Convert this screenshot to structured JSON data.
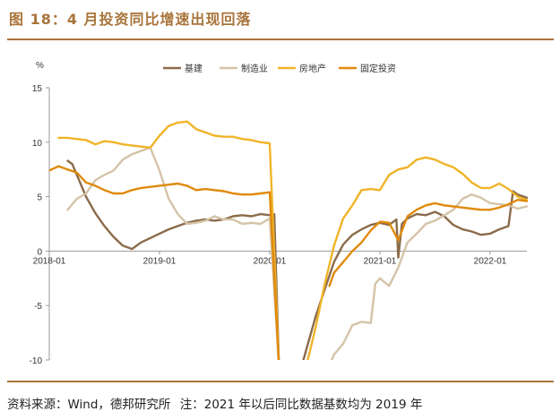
{
  "figure": {
    "title": "图 18：4 月投资同比增速出现回落",
    "source": "资料来源：Wind，德邦研究所",
    "note": "注：2021 年以后同比数据基数均为 2019 年"
  },
  "colors": {
    "accent": "#a8743a",
    "infrastructure": "#8b6b4a",
    "manufacturing": "#d4c4a8",
    "real_estate": "#f0b429",
    "fixed_investment": "#e08a0c",
    "axis": "#999999"
  },
  "chart_data": {
    "type": "line",
    "title": "",
    "ylabel": "%",
    "xlabel": "",
    "ylim": [
      -10,
      15
    ],
    "yticks": [
      -10,
      -5,
      0,
      5,
      10,
      15
    ],
    "xlim": [
      0,
      52
    ],
    "xticks": [
      {
        "x": 0,
        "label": "2018-01"
      },
      {
        "x": 12,
        "label": "2019-01"
      },
      {
        "x": 24,
        "label": "2020-01"
      },
      {
        "x": 36,
        "label": "2021-01"
      },
      {
        "x": 48,
        "label": "2022-01"
      }
    ],
    "legend_position": "top",
    "series": [
      {
        "name": "基建",
        "color_key": "infrastructure",
        "segments": [
          [
            [
              2,
              8.3
            ],
            [
              2.5,
              8.0
            ],
            [
              3,
              7.0
            ],
            [
              4,
              5.0
            ],
            [
              5,
              3.5
            ],
            [
              6,
              2.3
            ],
            [
              7,
              1.3
            ],
            [
              8,
              0.5
            ],
            [
              9,
              0.2
            ],
            [
              10,
              0.8
            ],
            [
              11,
              1.2
            ],
            [
              12,
              1.6
            ],
            [
              13,
              2.0
            ],
            [
              14,
              2.3
            ],
            [
              15,
              2.6
            ],
            [
              16,
              2.8
            ],
            [
              17,
              2.9
            ],
            [
              18,
              2.8
            ],
            [
              19,
              2.9
            ],
            [
              20,
              3.2
            ],
            [
              21,
              3.3
            ],
            [
              22,
              3.2
            ],
            [
              23,
              3.4
            ],
            [
              24,
              3.3
            ],
            [
              24.5,
              3.4
            ],
            [
              25,
              -10.5
            ]
          ],
          [
            [
              27.5,
              -10.5
            ],
            [
              28,
              -9.0
            ],
            [
              29,
              -6.0
            ],
            [
              30,
              -3.5
            ],
            [
              31,
              -1.0
            ],
            [
              32,
              0.6
            ],
            [
              33,
              1.5
            ],
            [
              34,
              2.0
            ],
            [
              35,
              2.4
            ],
            [
              36,
              2.6
            ],
            [
              37,
              2.4
            ],
            [
              37.8,
              2.9
            ],
            [
              38,
              -0.6
            ],
            [
              38.4,
              2.5
            ],
            [
              39,
              3.0
            ],
            [
              40,
              3.4
            ],
            [
              41,
              3.3
            ],
            [
              42,
              3.6
            ],
            [
              43,
              3.2
            ],
            [
              44,
              2.4
            ],
            [
              45,
              2.0
            ],
            [
              46,
              1.8
            ],
            [
              47,
              1.5
            ],
            [
              48,
              1.6
            ],
            [
              49,
              2.0
            ],
            [
              50,
              2.3
            ],
            [
              50.5,
              5.5
            ],
            [
              51,
              5.2
            ],
            [
              52,
              4.9
            ]
          ]
        ]
      },
      {
        "name": "制造业",
        "color_key": "manufacturing",
        "segments": [
          [
            [
              2,
              3.8
            ],
            [
              3,
              4.8
            ],
            [
              4,
              5.3
            ],
            [
              5,
              6.5
            ],
            [
              6,
              7.0
            ],
            [
              7,
              7.4
            ],
            [
              8,
              8.4
            ],
            [
              9,
              8.9
            ],
            [
              10,
              9.2
            ],
            [
              11,
              9.5
            ],
            [
              12,
              7.4
            ],
            [
              13,
              4.8
            ],
            [
              14,
              3.4
            ],
            [
              15,
              2.5
            ],
            [
              16,
              2.6
            ],
            [
              17,
              2.8
            ],
            [
              18,
              3.2
            ],
            [
              19,
              2.9
            ],
            [
              20,
              2.9
            ],
            [
              21,
              2.5
            ],
            [
              22,
              2.6
            ],
            [
              23,
              2.5
            ],
            [
              24,
              3.0
            ],
            [
              25,
              -10.5
            ]
          ],
          [
            [
              30.5,
              -10.5
            ],
            [
              31,
              -9.5
            ],
            [
              32,
              -8.5
            ],
            [
              33,
              -6.8
            ],
            [
              34,
              -6.5
            ],
            [
              35,
              -6.6
            ],
            [
              35.5,
              -3.0
            ],
            [
              36,
              -2.5
            ],
            [
              37,
              -3.2
            ],
            [
              38,
              -1.5
            ],
            [
              39,
              0.8
            ],
            [
              40,
              1.6
            ],
            [
              41,
              2.5
            ],
            [
              42,
              2.8
            ],
            [
              43,
              3.3
            ],
            [
              44,
              3.8
            ],
            [
              45,
              4.8
            ],
            [
              46,
              5.2
            ],
            [
              47,
              4.9
            ],
            [
              48,
              4.4
            ],
            [
              49,
              4.3
            ],
            [
              50,
              4.2
            ],
            [
              51,
              3.9
            ],
            [
              52,
              4.1
            ]
          ]
        ]
      },
      {
        "name": "房地产",
        "color_key": "real_estate",
        "segments": [
          [
            [
              1,
              10.4
            ],
            [
              2,
              10.4
            ],
            [
              3,
              10.3
            ],
            [
              4,
              10.2
            ],
            [
              5,
              9.8
            ],
            [
              6,
              10.1
            ],
            [
              7,
              10.0
            ],
            [
              8,
              9.8
            ],
            [
              9,
              9.7
            ],
            [
              10,
              9.6
            ],
            [
              11,
              9.5
            ],
            [
              12,
              10.6
            ],
            [
              13,
              11.5
            ],
            [
              14,
              11.8
            ],
            [
              15,
              11.9
            ],
            [
              16,
              11.2
            ],
            [
              17,
              10.9
            ],
            [
              18,
              10.6
            ],
            [
              19,
              10.5
            ],
            [
              20,
              10.5
            ],
            [
              21,
              10.3
            ],
            [
              22,
              10.2
            ],
            [
              23,
              10.0
            ],
            [
              24,
              9.9
            ],
            [
              25,
              -10.5
            ]
          ],
          [
            [
              28,
              -10.5
            ],
            [
              29,
              -7.0
            ],
            [
              30,
              -3.0
            ],
            [
              31,
              0.5
            ],
            [
              32,
              3.0
            ],
            [
              33,
              4.2
            ],
            [
              34,
              5.6
            ],
            [
              35,
              5.7
            ],
            [
              36,
              5.6
            ],
            [
              37,
              7.0
            ],
            [
              38,
              7.5
            ],
            [
              39,
              7.7
            ],
            [
              40,
              8.4
            ],
            [
              41,
              8.6
            ],
            [
              42,
              8.4
            ],
            [
              43,
              8.0
            ],
            [
              44,
              7.7
            ],
            [
              45,
              7.1
            ],
            [
              46,
              6.3
            ],
            [
              47,
              5.8
            ],
            [
              48,
              5.8
            ],
            [
              49,
              6.2
            ],
            [
              50,
              5.7
            ],
            [
              51,
              5.0
            ],
            [
              52,
              4.7
            ]
          ]
        ]
      },
      {
        "name": "固定投资",
        "color_key": "fixed_investment",
        "segments": [
          [
            [
              0,
              7.4
            ],
            [
              1,
              7.8
            ],
            [
              2,
              7.5
            ],
            [
              3,
              7.2
            ],
            [
              4,
              6.3
            ],
            [
              5,
              6.0
            ],
            [
              6,
              5.6
            ],
            [
              7,
              5.3
            ],
            [
              8,
              5.3
            ],
            [
              9,
              5.6
            ],
            [
              10,
              5.8
            ],
            [
              11,
              5.9
            ],
            [
              12,
              6.0
            ],
            [
              13,
              6.1
            ],
            [
              14,
              6.2
            ],
            [
              15,
              6.0
            ],
            [
              16,
              5.6
            ],
            [
              17,
              5.7
            ],
            [
              18,
              5.6
            ],
            [
              19,
              5.5
            ],
            [
              20,
              5.3
            ],
            [
              21,
              5.2
            ],
            [
              22,
              5.2
            ],
            [
              23,
              5.3
            ],
            [
              24,
              5.4
            ],
            [
              25,
              -10.5
            ]
          ],
          [
            [
              30.5,
              -3.2
            ],
            [
              31,
              -2.0
            ],
            [
              32,
              -1.0
            ],
            [
              33,
              0.0
            ],
            [
              34,
              0.8
            ],
            [
              35,
              1.9
            ],
            [
              36,
              2.7
            ],
            [
              37,
              2.6
            ],
            [
              38,
              1.0
            ],
            [
              39,
              3.2
            ],
            [
              40,
              3.8
            ],
            [
              41,
              4.2
            ],
            [
              42,
              4.4
            ],
            [
              43,
              4.2
            ],
            [
              44,
              4.1
            ],
            [
              45,
              4.0
            ],
            [
              46,
              3.9
            ],
            [
              47,
              3.8
            ],
            [
              48,
              3.8
            ],
            [
              49,
              4.0
            ],
            [
              50,
              4.3
            ],
            [
              51,
              4.7
            ],
            [
              52,
              4.6
            ]
          ]
        ]
      }
    ]
  }
}
